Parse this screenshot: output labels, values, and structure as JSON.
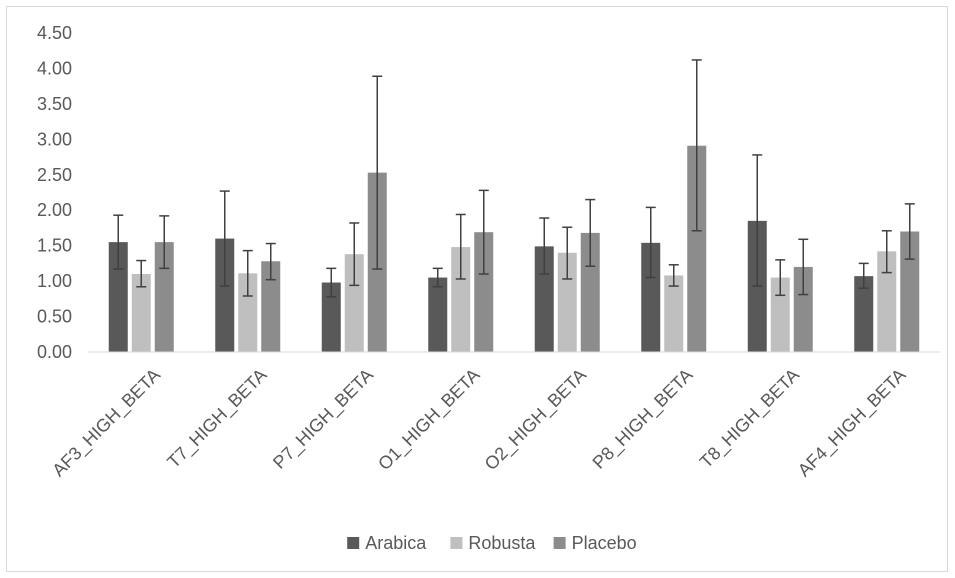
{
  "chart_data": {
    "type": "bar",
    "categories": [
      "AF3_HIGH_BETA",
      "T7_HIGH_BETA",
      "P7_HIGH_BETA",
      "O1_HIGH_BETA",
      "O2_HIGH_BETA",
      "P8_HIGH_BETA",
      "T8_HIGH_BETA",
      "AF4_HIGH_BETA"
    ],
    "series": [
      {
        "name": "Arabica",
        "color": "#595959",
        "values": [
          1.55,
          1.6,
          0.98,
          1.05,
          1.49,
          1.54,
          1.85,
          1.07
        ],
        "err_low": [
          1.17,
          0.93,
          0.78,
          0.92,
          1.1,
          1.05,
          0.93,
          0.9
        ],
        "err_high": [
          1.93,
          2.27,
          1.18,
          1.18,
          1.89,
          2.04,
          2.78,
          1.25
        ]
      },
      {
        "name": "Robusta",
        "color": "#bfbfbf",
        "values": [
          1.1,
          1.11,
          1.38,
          1.48,
          1.4,
          1.08,
          1.05,
          1.42
        ],
        "err_low": [
          0.92,
          0.79,
          0.94,
          1.03,
          1.03,
          0.93,
          0.8,
          1.12
        ],
        "err_high": [
          1.29,
          1.43,
          1.82,
          1.94,
          1.76,
          1.23,
          1.3,
          1.71
        ]
      },
      {
        "name": "Placebo",
        "color": "#8c8c8c",
        "values": [
          1.55,
          1.28,
          2.53,
          1.69,
          1.68,
          2.91,
          1.2,
          1.7
        ],
        "err_low": [
          1.18,
          1.02,
          1.17,
          1.1,
          1.21,
          1.71,
          0.81,
          1.31
        ],
        "err_high": [
          1.92,
          1.53,
          3.89,
          2.28,
          2.15,
          4.12,
          1.59,
          2.09
        ]
      }
    ],
    "yticks": [
      "0.00",
      "0.50",
      "1.00",
      "1.50",
      "2.00",
      "2.50",
      "3.00",
      "3.50",
      "4.00",
      "4.50"
    ],
    "ylim": [
      0,
      4.5
    ],
    "title": "",
    "xlabel": "",
    "ylabel": "",
    "grid": false,
    "legend_position": "bottom"
  }
}
